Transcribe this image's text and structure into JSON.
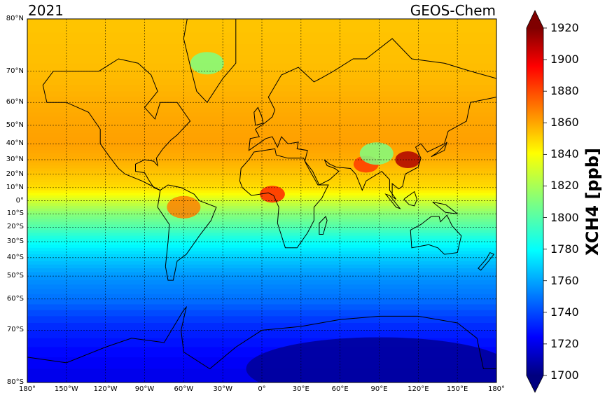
{
  "title_left": "2021",
  "title_right": "GEOS-Chem",
  "colorbar": {
    "label": "XCH4 [ppb]",
    "min": 1700,
    "max": 1920,
    "ticks": [
      "1700",
      "1720",
      "1740",
      "1760",
      "1780",
      "1800",
      "1820",
      "1840",
      "1860",
      "1880",
      "1900",
      "1920"
    ],
    "colormap": "jet",
    "extend": "both"
  },
  "axes": {
    "lat_ticks": [
      "80°N",
      "70°N",
      "60°N",
      "50°N",
      "40°N",
      "30°N",
      "20°N",
      "10°N",
      "0°",
      "10°S",
      "20°S",
      "30°S",
      "40°S",
      "50°S",
      "60°S",
      "70°S",
      "80°S"
    ],
    "lat_values": [
      80,
      70,
      60,
      50,
      40,
      30,
      20,
      10,
      0,
      -10,
      -20,
      -30,
      -40,
      -50,
      -60,
      -70,
      -80
    ],
    "lon_ticks": [
      "180°",
      "150°W",
      "120°W",
      "90°W",
      "60°W",
      "30°W",
      "0°",
      "30°E",
      "60°E",
      "90°E",
      "120°E",
      "150°E",
      "180°"
    ],
    "lon_values": [
      -180,
      -150,
      -120,
      -90,
      -60,
      -30,
      0,
      30,
      60,
      90,
      120,
      150,
      180
    ],
    "projection": "Mercator",
    "grid": true
  },
  "chart_data": {
    "type": "heatmap",
    "title": "",
    "xlabel": "",
    "ylabel": "",
    "value_label": "XCH4 [ppb]",
    "xlim": [
      -180,
      180
    ],
    "ylim": [
      -80,
      80
    ],
    "zlim": [
      1700,
      1920
    ],
    "zonal_profile": {
      "lat": [
        80,
        70,
        60,
        50,
        40,
        30,
        20,
        10,
        0,
        -10,
        -20,
        -30,
        -40,
        -50,
        -60,
        -70,
        -80
      ],
      "xch4": [
        1850,
        1852,
        1855,
        1857,
        1858,
        1855,
        1850,
        1845,
        1828,
        1812,
        1800,
        1785,
        1772,
        1760,
        1752,
        1735,
        1722
      ]
    },
    "hotspots": [
      {
        "name": "East China",
        "lon": 112,
        "lat": 30,
        "xch4": 1910
      },
      {
        "name": "South Asia",
        "lon": 80,
        "lat": 27,
        "xch4": 1880
      },
      {
        "name": "West Africa",
        "lon": 8,
        "lat": 5,
        "xch4": 1885
      },
      {
        "name": "Amazon",
        "lon": -60,
        "lat": -5,
        "xch4": 1865
      }
    ],
    "lowspots": [
      {
        "name": "Greenland",
        "lon": -42,
        "lat": 72,
        "xch4": 1810
      },
      {
        "name": "Tibetan Plateau",
        "lon": 88,
        "lat": 34,
        "xch4": 1810
      },
      {
        "name": "Antarctica",
        "lon": 90,
        "lat": -78,
        "xch4": 1705
      }
    ]
  }
}
